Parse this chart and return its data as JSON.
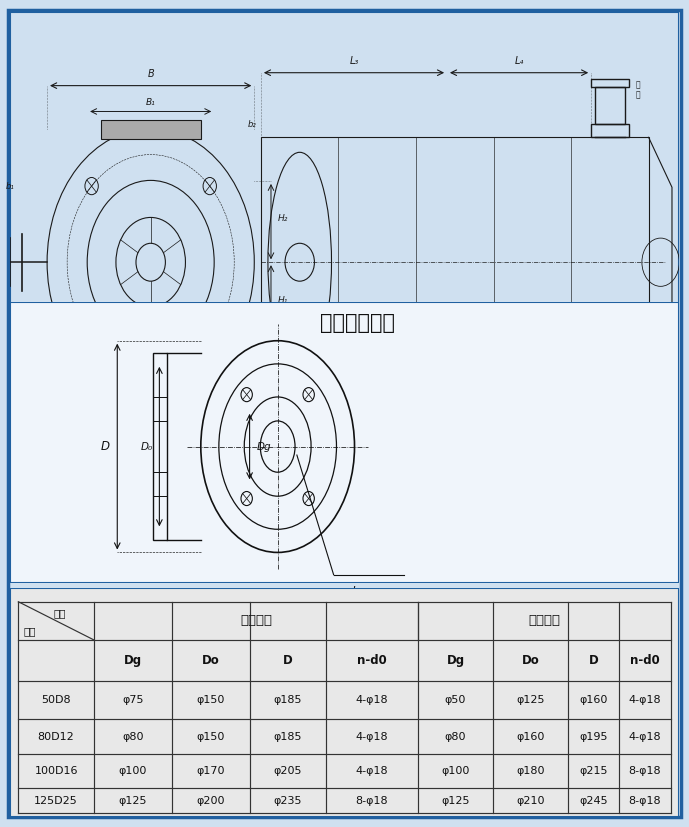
{
  "bg_color": "#cfe0f0",
  "border_color": "#2060a0",
  "title_flange": "吸入吐出法兰",
  "table_data": [
    [
      "50D8",
      "φ75",
      "φ150",
      "φ185",
      "4-φ18",
      "φ50",
      "φ125",
      "φ160",
      "4-φ18"
    ],
    [
      "80D12",
      "φ80",
      "φ150",
      "φ185",
      "4-φ18",
      "φ80",
      "φ160",
      "φ195",
      "4-φ18"
    ],
    [
      "100D16",
      "φ100",
      "φ170",
      "φ205",
      "4-φ18",
      "φ100",
      "φ180",
      "φ215",
      "8-φ18"
    ],
    [
      "125D25",
      "φ125",
      "φ200",
      "φ235",
      "8-φ18",
      "φ125",
      "φ210",
      "φ245",
      "8-φ18"
    ]
  ],
  "lc": "#1a1a1a",
  "lw": 0.8
}
